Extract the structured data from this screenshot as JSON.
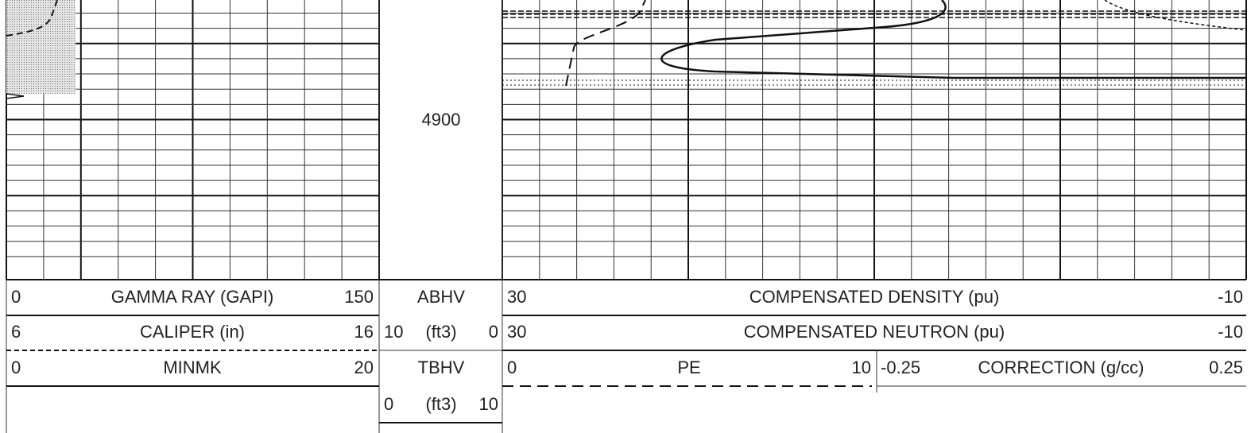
{
  "depth_label": "4900",
  "track1": [
    {
      "min": "0",
      "name": "GAMMA RAY (GAPI)",
      "max": "150"
    },
    {
      "min": "6",
      "name": "CALIPER (in)",
      "max": "16"
    },
    {
      "min": "0",
      "name": "MINMK",
      "max": "20"
    }
  ],
  "depth_track": [
    {
      "name": "ABHV"
    },
    {
      "min": "10",
      "name": "(ft3)",
      "max": "0"
    },
    {
      "name": "TBHV"
    },
    {
      "min": "0",
      "name": "(ft3)",
      "max": "10"
    }
  ],
  "track2": [
    {
      "min": "30",
      "name": "COMPENSATED DENSITY (pu)",
      "max": "-10"
    },
    {
      "min": "30",
      "name": "COMPENSATED NEUTRON (pu)",
      "max": "-10"
    },
    {
      "min": "0",
      "name": "PE",
      "max": "10"
    },
    {
      "min": "-0.25",
      "name": "CORRECTION (g/cc)",
      "max": "0.25"
    }
  ]
}
